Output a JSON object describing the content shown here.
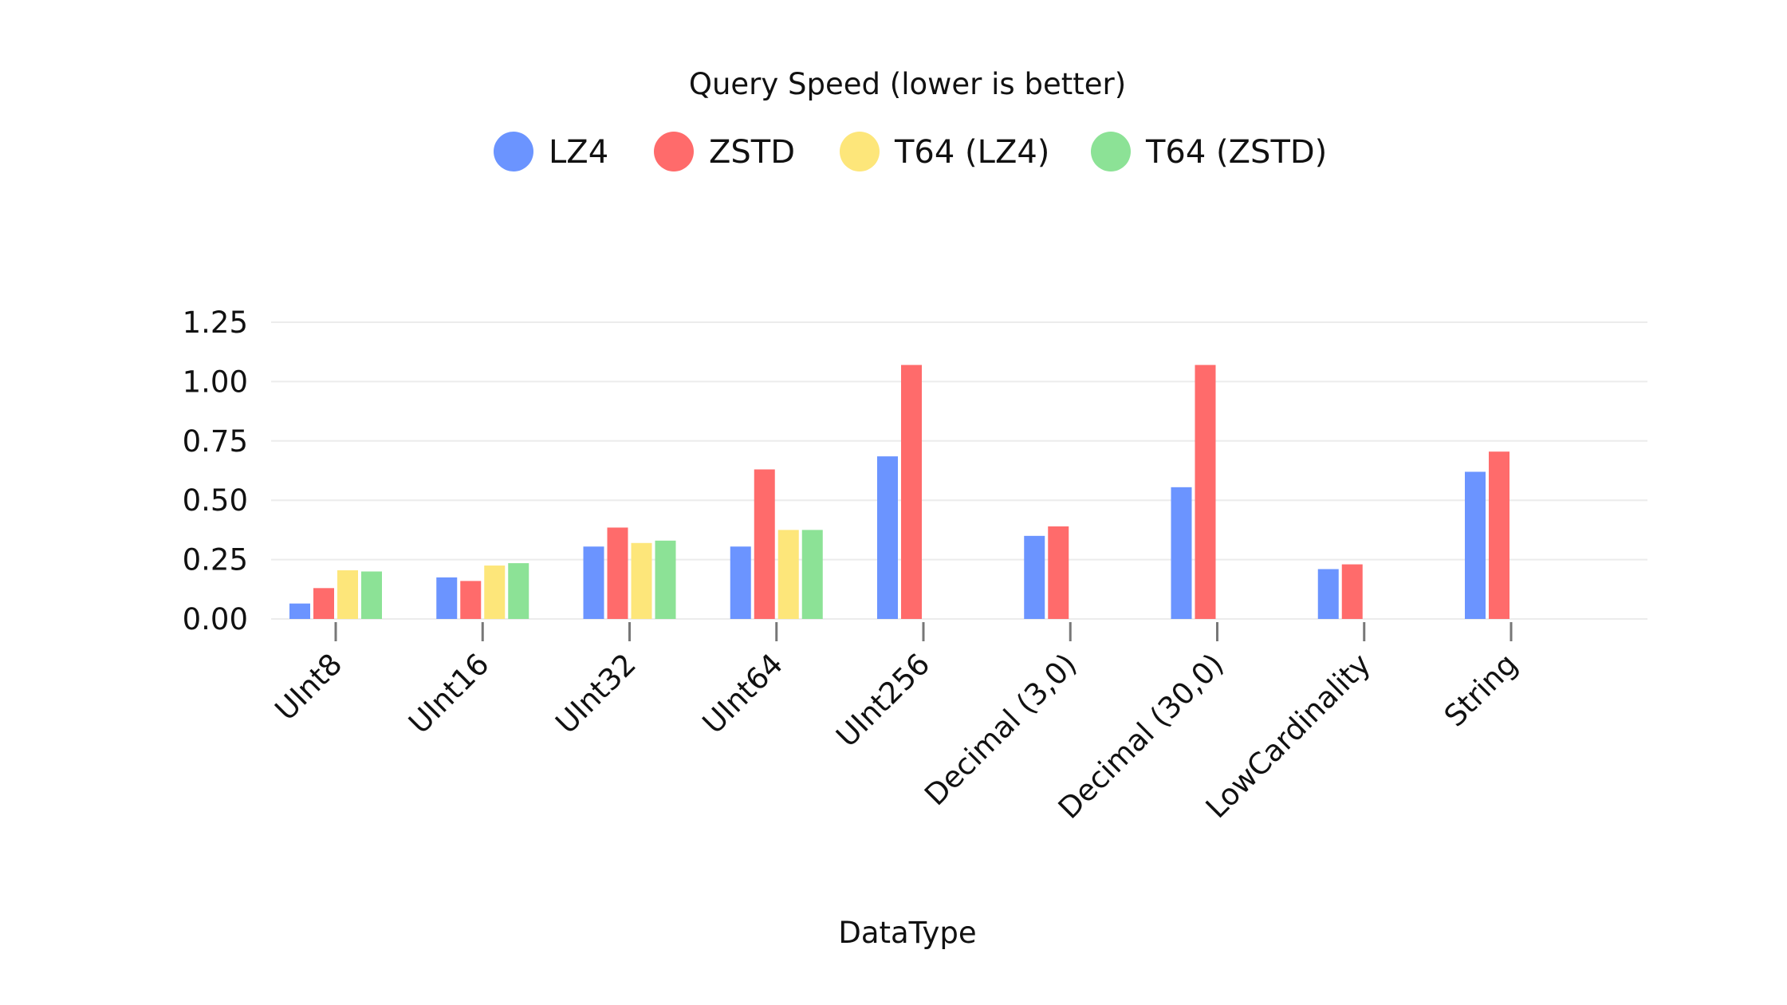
{
  "chart_data": {
    "type": "bar",
    "title": "Query Speed (lower is better)",
    "xlabel": "DataType",
    "ylabel": "",
    "ylim": [
      0,
      1.25
    ],
    "yticks": [
      "0.00",
      "0.25",
      "0.50",
      "0.75",
      "1.00",
      "1.25"
    ],
    "ytick_values": [
      0,
      0.25,
      0.5,
      0.75,
      1.0,
      1.25
    ],
    "grid": true,
    "legend_position": "top-center",
    "categories": [
      "UInt8",
      "UInt16",
      "UInt32",
      "UInt64",
      "UInt256",
      "Decimal (3,0)",
      "Decimal (30,0)",
      "LowCardinality",
      "String"
    ],
    "series": [
      {
        "name": "LZ4",
        "color": "#6b94ff",
        "values": [
          0.065,
          0.175,
          0.305,
          0.305,
          0.685,
          0.35,
          0.555,
          0.21,
          0.62
        ]
      },
      {
        "name": "ZSTD",
        "color": "#ff6b6b",
        "values": [
          0.13,
          0.16,
          0.385,
          0.63,
          1.07,
          0.39,
          1.07,
          0.23,
          0.705
        ]
      },
      {
        "name": "T64 (LZ4)",
        "color": "#fde67a",
        "values": [
          0.205,
          0.225,
          0.32,
          0.375,
          null,
          null,
          null,
          null,
          null
        ]
      },
      {
        "name": "T64 (ZSTD)",
        "color": "#8ce296",
        "values": [
          0.2,
          0.235,
          0.33,
          0.375,
          null,
          null,
          null,
          null,
          null
        ]
      }
    ]
  }
}
